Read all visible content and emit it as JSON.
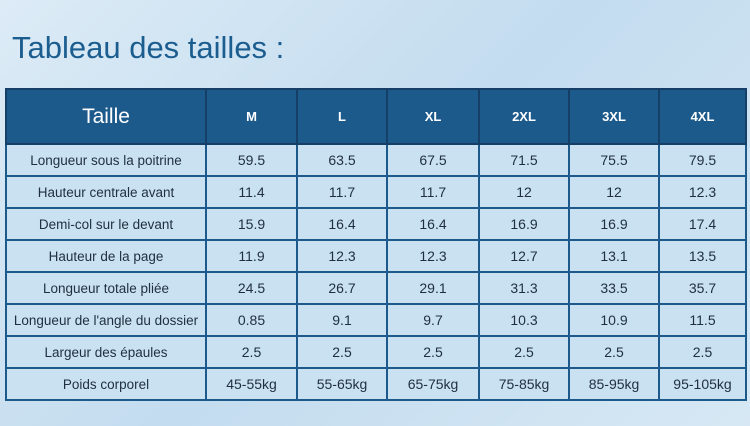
{
  "header": {
    "title": "Tableau des tailles :"
  },
  "table": {
    "columns": [
      "Taille",
      "M",
      "L",
      "XL",
      "2XL",
      "3XL",
      "4XL"
    ],
    "rows": [
      [
        "Longueur sous la poitrine",
        "59.5",
        "63.5",
        "67.5",
        "71.5",
        "75.5",
        "79.5"
      ],
      [
        "Hauteur centrale avant",
        "11.4",
        "11.7",
        "11.7",
        "12",
        "12",
        "12.3"
      ],
      [
        "Demi-col sur le devant",
        "15.9",
        "16.4",
        "16.4",
        "16.9",
        "16.9",
        "17.4"
      ],
      [
        "Hauteur de la page",
        "11.9",
        "12.3",
        "12.3",
        "12.7",
        "13.1",
        "13.5"
      ],
      [
        "Longueur totale pliée",
        "24.5",
        "26.7",
        "29.1",
        "31.3",
        "33.5",
        "35.7"
      ],
      [
        "Longueur de l'angle du dossier",
        "0.85",
        "9.1",
        "9.7",
        "10.3",
        "10.9",
        "11.5"
      ],
      [
        "Largeur des épaules",
        "2.5",
        "2.5",
        "2.5",
        "2.5",
        "2.5",
        "2.5"
      ],
      [
        "Poids corporel",
        "45-55kg",
        "55-65kg",
        "65-75kg",
        "75-85kg",
        "85-95kg",
        "95-105kg"
      ]
    ]
  }
}
